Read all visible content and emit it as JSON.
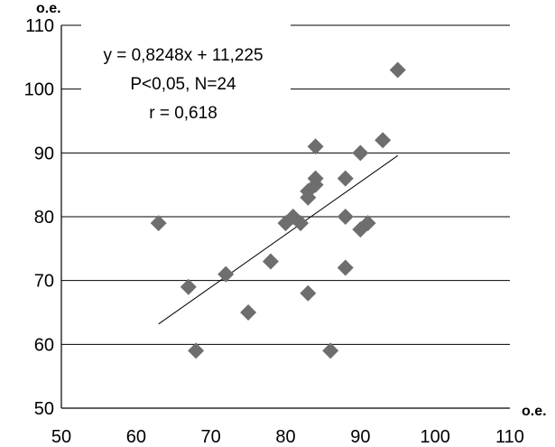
{
  "chart_data": {
    "type": "scatter",
    "xlim": [
      50,
      110
    ],
    "ylim": [
      50,
      110
    ],
    "x_ticks": [
      "50",
      "60",
      "70",
      "80",
      "90",
      "100",
      "110"
    ],
    "y_ticks": [
      "50",
      "60",
      "70",
      "80",
      "90",
      "100",
      "110"
    ],
    "x_unit": "о.е.",
    "y_unit": "о.е.",
    "grid": "horizontal",
    "marker": "diamond",
    "marker_color": "#6e6e6e",
    "points": [
      {
        "x": 63,
        "y": 79
      },
      {
        "x": 67,
        "y": 69
      },
      {
        "x": 68,
        "y": 59
      },
      {
        "x": 72,
        "y": 71
      },
      {
        "x": 75,
        "y": 65
      },
      {
        "x": 78,
        "y": 73
      },
      {
        "x": 80,
        "y": 79
      },
      {
        "x": 81,
        "y": 80
      },
      {
        "x": 82,
        "y": 79
      },
      {
        "x": 83,
        "y": 83
      },
      {
        "x": 83,
        "y": 68
      },
      {
        "x": 84,
        "y": 91
      },
      {
        "x": 84,
        "y": 86
      },
      {
        "x": 84,
        "y": 85
      },
      {
        "x": 86,
        "y": 59
      },
      {
        "x": 88,
        "y": 86
      },
      {
        "x": 88,
        "y": 80
      },
      {
        "x": 88,
        "y": 72
      },
      {
        "x": 90,
        "y": 90
      },
      {
        "x": 90,
        "y": 78
      },
      {
        "x": 91,
        "y": 79
      },
      {
        "x": 93,
        "y": 92
      },
      {
        "x": 95,
        "y": 103
      },
      {
        "x": 83,
        "y": 84
      }
    ],
    "trendline": {
      "slope": 0.8248,
      "intercept": 11.225,
      "x_range": [
        63,
        95
      ]
    },
    "annotations": [
      "y = 0,8248x + 11,225",
      "P<0,05, N=24",
      "r = 0,618"
    ]
  }
}
